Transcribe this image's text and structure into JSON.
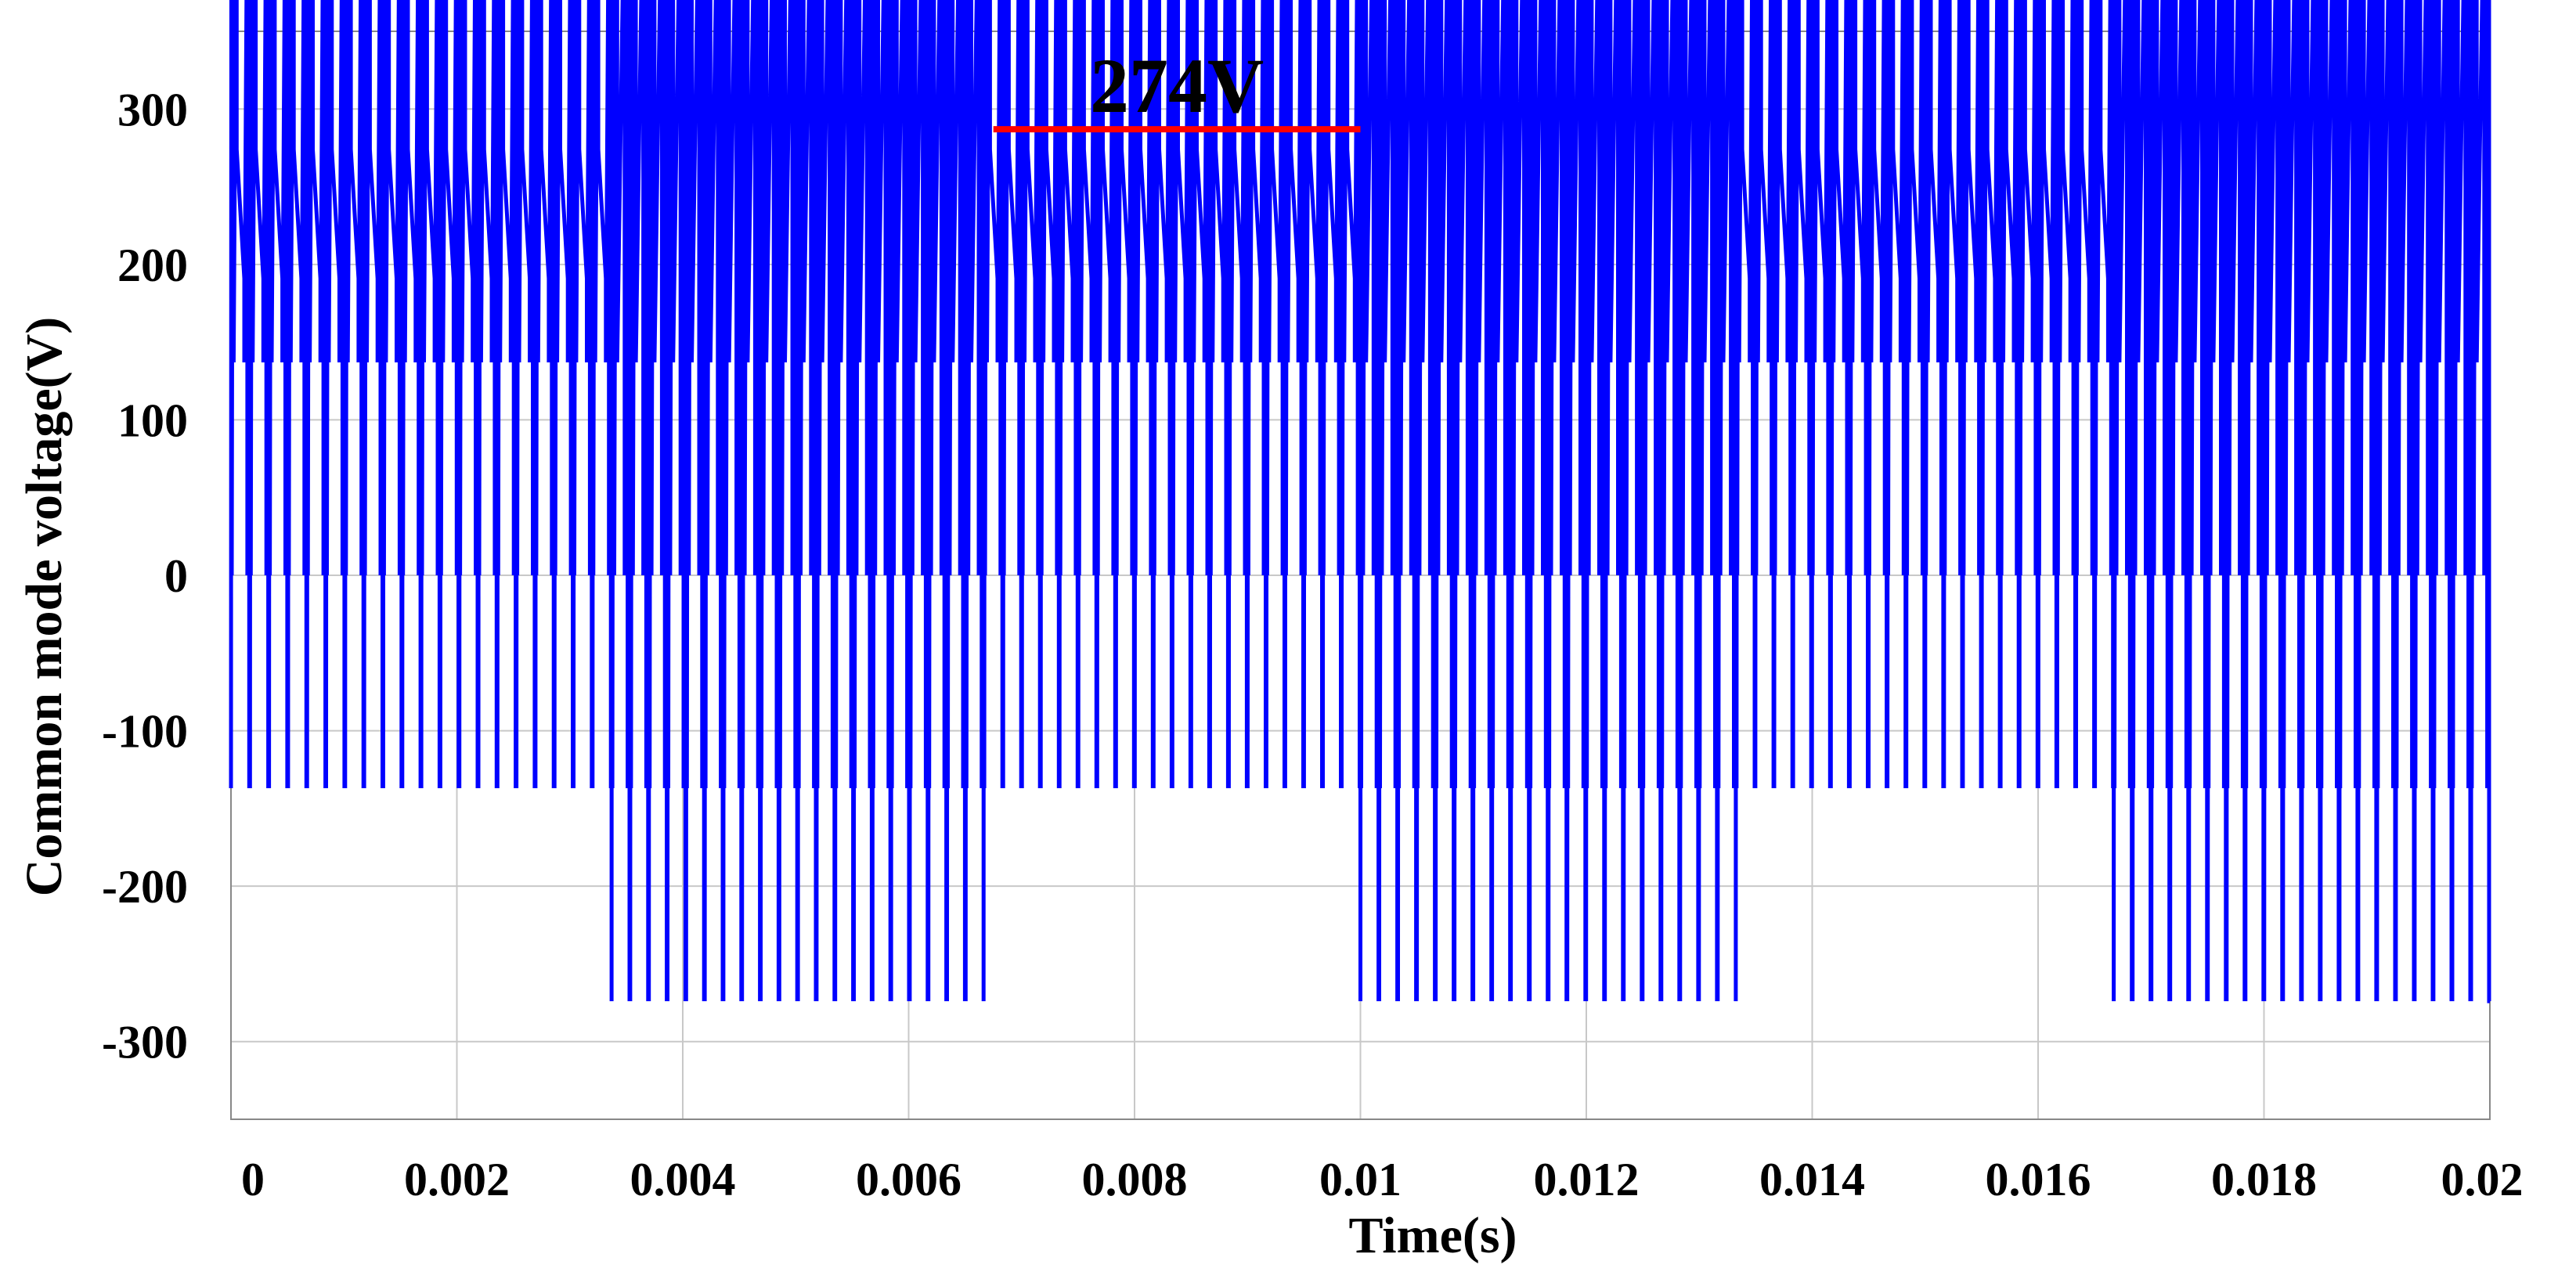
{
  "colors": {
    "signal": "#0000ff",
    "annotation": "#ff0000",
    "grid": "#c8c8c8",
    "text": "#000000"
  },
  "chart_data": {
    "type": "line",
    "title": "",
    "xlabel": "Time(s)",
    "ylabel": "Common mode voltage(V)",
    "xlim": [
      0,
      0.02
    ],
    "ylim": [
      -350,
      350
    ],
    "x_ticks": [
      0,
      0.002,
      0.004,
      0.006,
      0.008,
      0.01,
      0.012,
      0.014,
      0.016,
      0.018,
      0.02
    ],
    "x_tick_labels": [
      "0",
      "0.002",
      "0.004",
      "0.006",
      "0.008",
      "0.01",
      "0.012",
      "0.014",
      "0.016",
      "0.018",
      "0.02"
    ],
    "y_ticks": [
      300,
      200,
      100,
      0,
      -100,
      -200,
      -300
    ],
    "y_tick_labels": [
      "300",
      "200",
      "100",
      "0",
      "-100",
      "-200",
      "-300"
    ],
    "grid": true,
    "legend": "none",
    "series": [
      {
        "color": "#0000ff",
        "description": "PWM switching waveform; levels in V per 1/3-period segment",
        "switching_period": 0.0001667,
        "segments": [
          {
            "t_start": 0.0,
            "t_end": 0.00337,
            "levels": [
              -137,
              0,
              137,
              274
            ]
          },
          {
            "t_start": 0.00337,
            "t_end": 0.00667,
            "levels": [
              -274,
              -137,
              0,
              137
            ]
          },
          {
            "t_start": 0.00667,
            "t_end": 0.01,
            "levels": [
              -137,
              0,
              137,
              274
            ]
          },
          {
            "t_start": 0.01,
            "t_end": 0.01333,
            "levels": [
              -274,
              -137,
              0,
              137
            ]
          },
          {
            "t_start": 0.01333,
            "t_end": 0.01667,
            "levels": [
              -137,
              0,
              137,
              274
            ]
          },
          {
            "t_start": 0.01667,
            "t_end": 0.02,
            "levels": [
              -274,
              -137,
              0,
              137
            ]
          }
        ]
      }
    ],
    "annotations": [
      {
        "text": "274V",
        "x_start": 0.00675,
        "x_end": 0.01,
        "y": 287
      }
    ]
  }
}
